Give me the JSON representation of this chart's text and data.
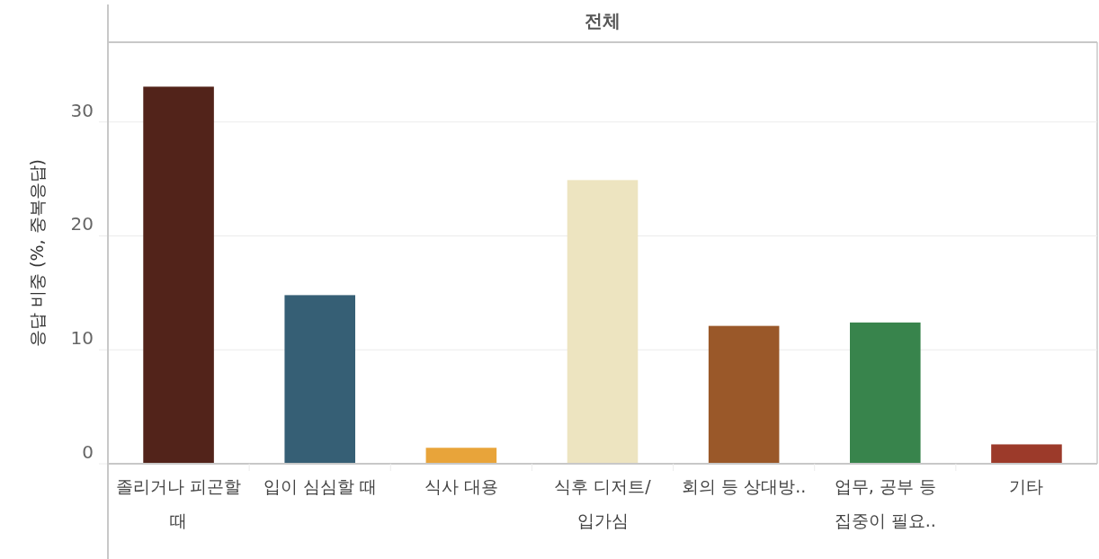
{
  "chart_data": {
    "type": "bar",
    "title": "전체",
    "ylabel": "응답 비중 (%, 중복응답)",
    "categories": [
      "졸리거나 피곤할 때",
      "입이 심심할 때",
      "식사 대용",
      "식후 디저트/ 입가심",
      "회의 등 상대방..",
      "업무, 공부 등 집중이 필요..",
      "기타"
    ],
    "values": [
      33.1,
      14.8,
      1.4,
      24.9,
      12.1,
      12.4,
      1.7
    ],
    "colors": [
      "#52231a",
      "#365f75",
      "#e8a43a",
      "#ede4c0",
      "#9a5829",
      "#38844c",
      "#9c3a2a"
    ],
    "ylim": [
      0,
      37
    ],
    "yticks": [
      0,
      10,
      20,
      30
    ],
    "grid": "y"
  }
}
